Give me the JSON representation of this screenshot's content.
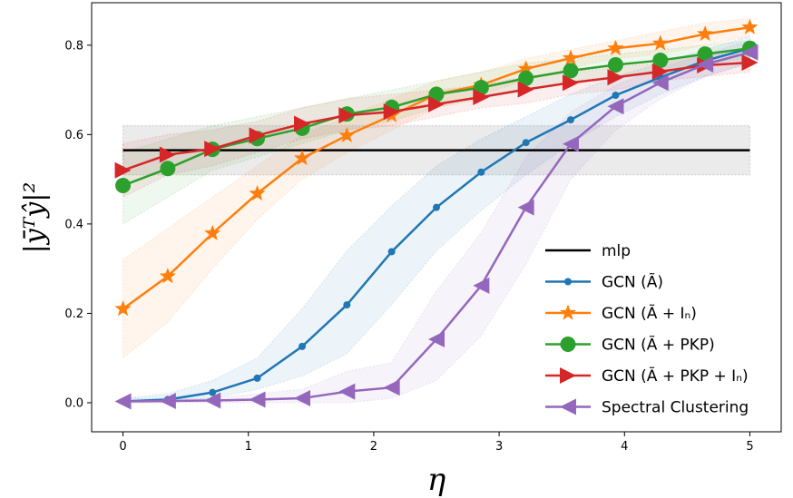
{
  "chart_data": {
    "type": "line",
    "xlabel": "η",
    "ylabel": "|ȳᵀŷ|²",
    "xlim": [
      -0.25,
      5.25
    ],
    "ylim": [
      -0.065,
      0.895
    ],
    "xticks": [
      0,
      1,
      2,
      3,
      4,
      5
    ],
    "yticks": [
      0.0,
      0.2,
      0.4,
      0.6,
      0.8
    ],
    "xtick_labels": [
      "0",
      "1",
      "2",
      "3",
      "4",
      "5"
    ],
    "ytick_labels": [
      "0.0",
      "0.2",
      "0.4",
      "0.6",
      "0.8"
    ],
    "grid": false,
    "legend_position": "lower-right",
    "x": [
      0,
      0.357,
      0.714,
      1.071,
      1.429,
      1.786,
      2.143,
      2.5,
      2.857,
      3.214,
      3.571,
      3.929,
      4.286,
      4.643,
      5.0
    ],
    "series": [
      {
        "name": "mlp",
        "legend_label": "mlp",
        "color": "#000000",
        "marker": "none",
        "values": [
          0.565,
          0.565,
          0.565,
          0.565,
          0.565,
          0.565,
          0.565,
          0.565,
          0.565,
          0.565,
          0.565,
          0.565,
          0.565,
          0.565,
          0.565
        ],
        "band_low": [
          0.51,
          0.51,
          0.51,
          0.51,
          0.51,
          0.51,
          0.51,
          0.51,
          0.51,
          0.51,
          0.51,
          0.51,
          0.51,
          0.51,
          0.51
        ],
        "band_high": [
          0.62,
          0.62,
          0.62,
          0.62,
          0.62,
          0.62,
          0.62,
          0.62,
          0.62,
          0.62,
          0.62,
          0.62,
          0.62,
          0.62,
          0.62
        ]
      },
      {
        "name": "GCN (Ã)",
        "legend_label": "GCN (Ã)",
        "color": "#1f77b4",
        "marker": "dot",
        "values": [
          0.003,
          0.007,
          0.023,
          0.055,
          0.126,
          0.219,
          0.338,
          0.437,
          0.516,
          0.582,
          0.633,
          0.688,
          0.728,
          0.765,
          0.793
        ],
        "band_low": [
          0.0,
          0.0,
          0.01,
          0.03,
          0.06,
          0.11,
          0.22,
          0.34,
          0.43,
          0.51,
          0.58,
          0.64,
          0.69,
          0.73,
          0.76
        ],
        "band_high": [
          0.01,
          0.02,
          0.05,
          0.1,
          0.21,
          0.34,
          0.44,
          0.53,
          0.59,
          0.64,
          0.69,
          0.73,
          0.76,
          0.79,
          0.82
        ]
      },
      {
        "name": "GCN (Ã + Iₙ)",
        "legend_label": "GCN (Ã + Iₙ)",
        "color": "#ff7f0e",
        "marker": "star",
        "values": [
          0.21,
          0.283,
          0.379,
          0.468,
          0.547,
          0.598,
          0.643,
          0.69,
          0.711,
          0.747,
          0.771,
          0.793,
          0.804,
          0.825,
          0.84
        ],
        "band_low": [
          0.1,
          0.18,
          0.3,
          0.41,
          0.5,
          0.56,
          0.61,
          0.66,
          0.69,
          0.72,
          0.75,
          0.77,
          0.78,
          0.8,
          0.82
        ],
        "band_high": [
          0.32,
          0.39,
          0.46,
          0.53,
          0.6,
          0.64,
          0.68,
          0.72,
          0.74,
          0.77,
          0.79,
          0.81,
          0.83,
          0.85,
          0.86
        ]
      },
      {
        "name": "GCN (Ã + PKP)",
        "legend_label": "GCN (Ã + PKP)",
        "color": "#2ca02c",
        "marker": "circle",
        "values": [
          0.486,
          0.524,
          0.567,
          0.591,
          0.614,
          0.646,
          0.661,
          0.69,
          0.705,
          0.726,
          0.743,
          0.756,
          0.766,
          0.78,
          0.793
        ],
        "band_low": [
          0.4,
          0.46,
          0.52,
          0.55,
          0.58,
          0.61,
          0.63,
          0.66,
          0.68,
          0.7,
          0.72,
          0.73,
          0.74,
          0.76,
          0.77
        ],
        "band_high": [
          0.56,
          0.59,
          0.62,
          0.64,
          0.66,
          0.68,
          0.7,
          0.72,
          0.74,
          0.76,
          0.77,
          0.78,
          0.79,
          0.8,
          0.81
        ]
      },
      {
        "name": "GCN (Ã + PKP + Iₙ)",
        "legend_label": "GCN (Ã + PKP + Iₙ)",
        "color": "#d62728",
        "marker": "triangle-right",
        "values": [
          0.52,
          0.555,
          0.568,
          0.598,
          0.624,
          0.643,
          0.651,
          0.668,
          0.684,
          0.701,
          0.716,
          0.728,
          0.741,
          0.755,
          0.761
        ],
        "band_low": [
          0.46,
          0.51,
          0.53,
          0.56,
          0.59,
          0.61,
          0.62,
          0.64,
          0.66,
          0.67,
          0.69,
          0.7,
          0.72,
          0.73,
          0.74
        ],
        "band_high": [
          0.58,
          0.6,
          0.61,
          0.63,
          0.66,
          0.68,
          0.69,
          0.7,
          0.71,
          0.73,
          0.74,
          0.75,
          0.76,
          0.78,
          0.78
        ]
      },
      {
        "name": "Spectral Clustering",
        "legend_label": "Spectral Clustering",
        "color": "#9467bd",
        "marker": "triangle-left",
        "values": [
          0.003,
          0.004,
          0.005,
          0.007,
          0.01,
          0.025,
          0.034,
          0.142,
          0.262,
          0.437,
          0.579,
          0.663,
          0.716,
          0.757,
          0.784
        ],
        "band_low": [
          0.0,
          0.0,
          0.0,
          0.0,
          0.0,
          0.0,
          0.01,
          0.05,
          0.15,
          0.31,
          0.5,
          0.61,
          0.68,
          0.73,
          0.76
        ],
        "band_high": [
          0.01,
          0.01,
          0.01,
          0.02,
          0.03,
          0.07,
          0.09,
          0.25,
          0.38,
          0.55,
          0.65,
          0.71,
          0.75,
          0.78,
          0.81
        ]
      }
    ]
  }
}
